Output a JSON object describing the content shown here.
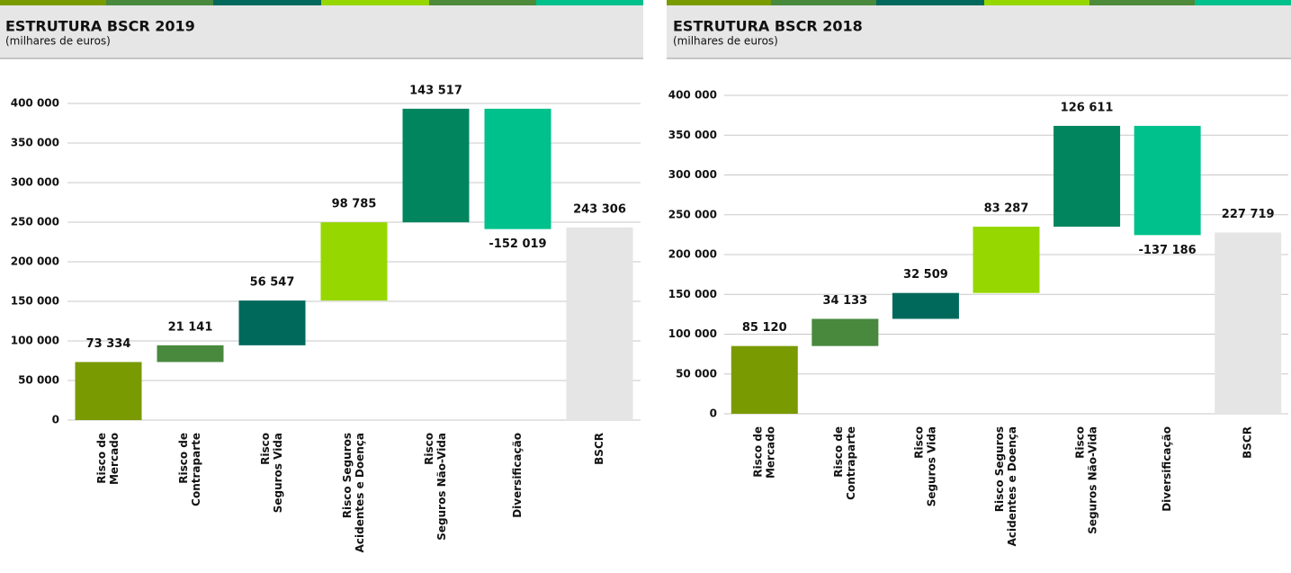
{
  "chart_data": [
    {
      "type": "waterfall",
      "title": "ESTRUTURA BSCR 2019",
      "subtitle": "(milhares de euros)",
      "categories": [
        [
          "Risco de",
          "Mercado"
        ],
        [
          "Risco de",
          "Contraparte"
        ],
        [
          "Risco",
          "Seguros Vida"
        ],
        [
          "Risco Seguros",
          "Acidentes e Doença"
        ],
        [
          "Risco",
          "Seguros Não-Vida"
        ],
        [
          "Diversificação"
        ],
        [
          "BSCR"
        ]
      ],
      "values": [
        73334,
        21141,
        56547,
        98785,
        143517,
        -152019,
        243306
      ],
      "value_labels": [
        "73 334",
        "21 141",
        "56 547",
        "98 785",
        "143 517",
        "-152 019",
        "243 306"
      ],
      "colors": [
        "#7a9a01",
        "#48893e",
        "#00695c",
        "#97d700",
        "#00855f",
        "#00c08b",
        "#e5e5e5"
      ],
      "ylim": [
        0,
        400000
      ],
      "yticks": [
        {
          "value": 0,
          "label": "0"
        },
        {
          "value": 50000,
          "label": "50 000"
        },
        {
          "value": 100000,
          "label": "100 000"
        },
        {
          "value": 150000,
          "label": "150 000"
        },
        {
          "value": 200000,
          "label": "200 000"
        },
        {
          "value": 250000,
          "label": "250 000"
        },
        {
          "value": 300000,
          "label": "300 000"
        },
        {
          "value": 350000,
          "label": "350 000"
        },
        {
          "value": 400000,
          "label": "400 000"
        }
      ],
      "grid": true
    },
    {
      "type": "waterfall",
      "title": "ESTRUTURA BSCR 2018",
      "subtitle": "(milhares de euros)",
      "categories": [
        [
          "Risco de",
          "Mercado"
        ],
        [
          "Risco de",
          "Contraparte"
        ],
        [
          "Risco",
          "Seguros Vida"
        ],
        [
          "Risco Seguros",
          "Acidentes e Doença"
        ],
        [
          "Risco",
          "Seguros Não-Vida"
        ],
        [
          "Diversificação"
        ],
        [
          "BSCR"
        ]
      ],
      "values": [
        85120,
        34133,
        32509,
        83287,
        126611,
        -137186,
        227719
      ],
      "value_labels": [
        "85 120",
        "34 133",
        "32 509",
        "83 287",
        "126 611",
        "-137 186",
        "227 719"
      ],
      "colors": [
        "#7a9a01",
        "#48893e",
        "#00695c",
        "#97d700",
        "#00855f",
        "#00c08b",
        "#e5e5e5"
      ],
      "ylim": [
        0,
        400000
      ],
      "yticks": [
        {
          "value": 0,
          "label": "0"
        },
        {
          "value": 50000,
          "label": "50 000"
        },
        {
          "value": 100000,
          "label": "100 000"
        },
        {
          "value": 150000,
          "label": "150 000"
        },
        {
          "value": 200000,
          "label": "200 000"
        },
        {
          "value": 250000,
          "label": "250 000"
        },
        {
          "value": 300000,
          "label": "300 000"
        },
        {
          "value": 350000,
          "label": "350 000"
        },
        {
          "value": 400000,
          "label": "400 000"
        }
      ],
      "grid": true
    }
  ]
}
